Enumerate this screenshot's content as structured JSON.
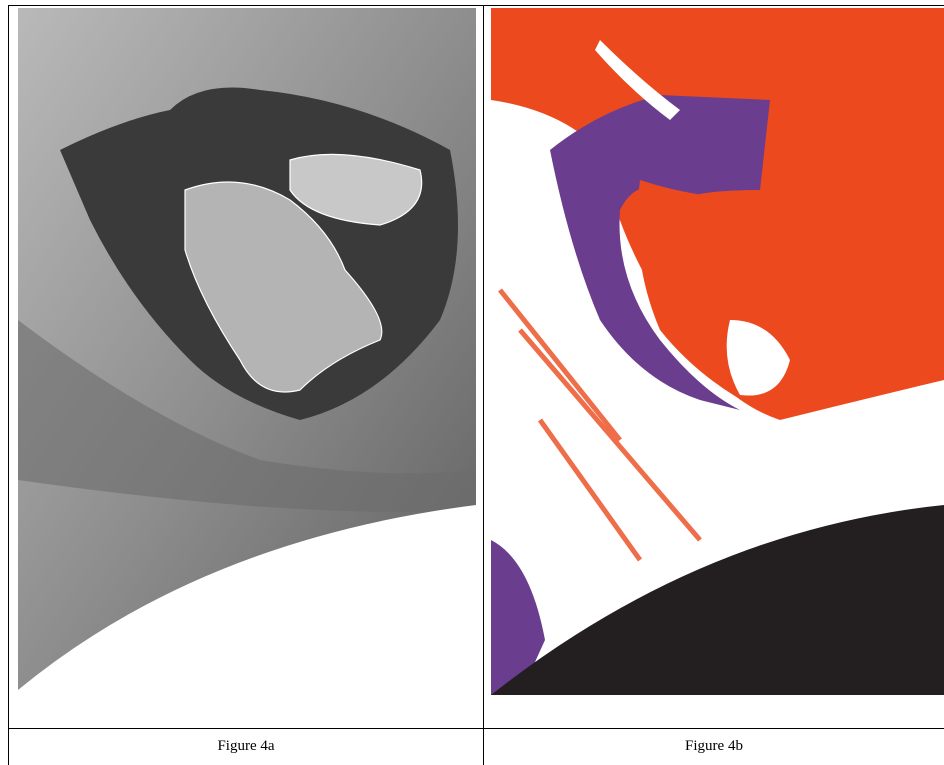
{
  "figures": [
    {
      "caption": "Figure 4a"
    },
    {
      "caption": "Figure 4b"
    }
  ]
}
